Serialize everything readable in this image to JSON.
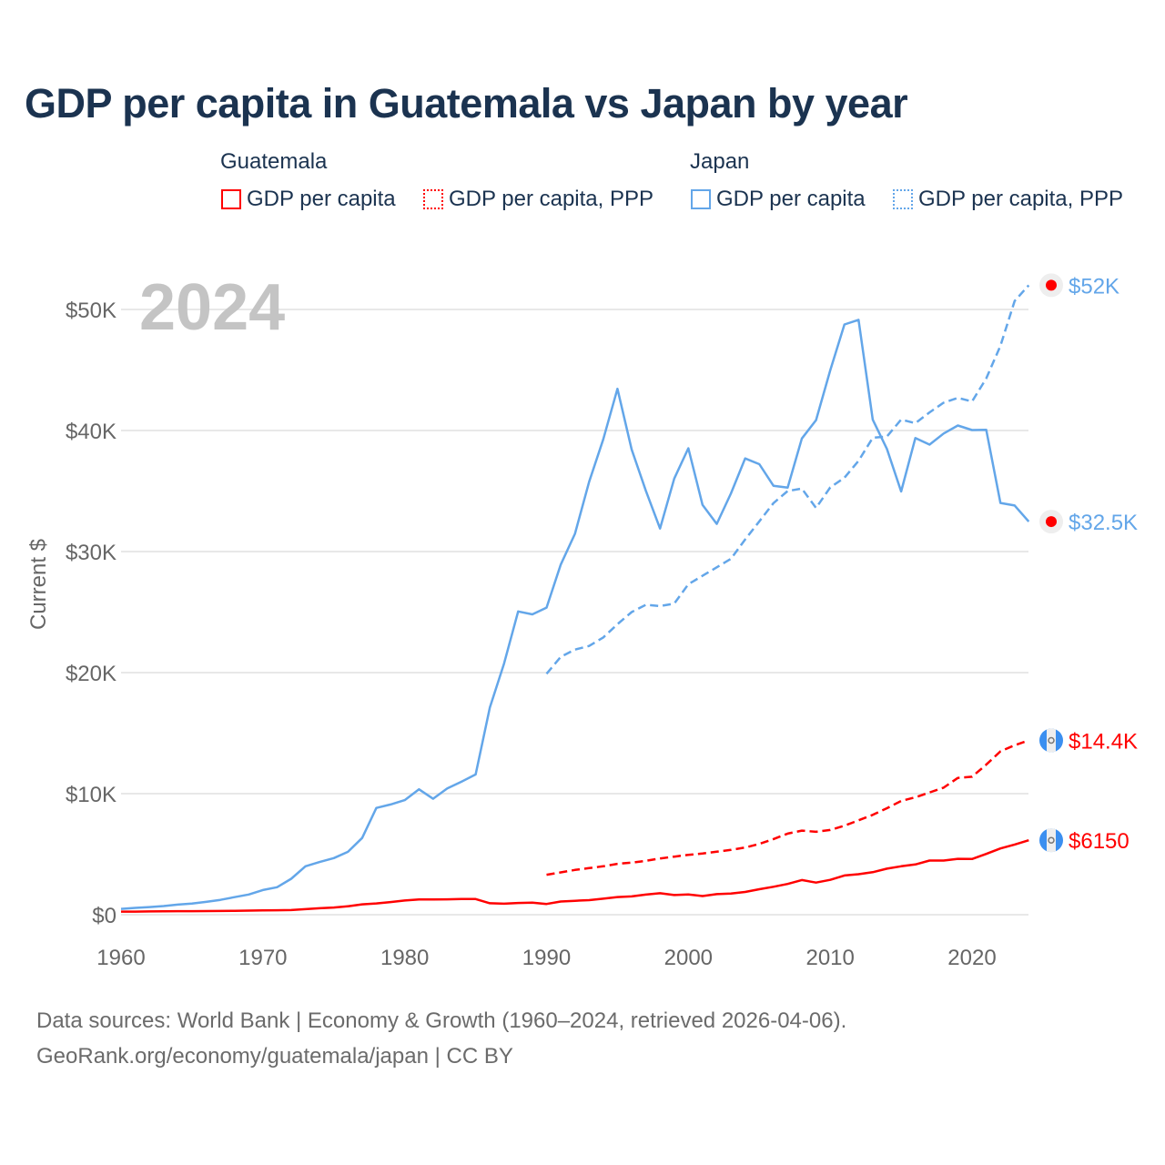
{
  "chart_data": {
    "type": "line",
    "title": "GDP per capita in Guatemala vs Japan by year",
    "ylabel": "Current $",
    "xlabel": "",
    "year_label": "2024",
    "xlim": [
      1960,
      2024
    ],
    "ylim": [
      0,
      52000
    ],
    "x_ticks": [
      1960,
      1970,
      1980,
      1990,
      2000,
      2010,
      2020
    ],
    "x_tick_labels": [
      "1960",
      "1970",
      "1980",
      "1990",
      "2000",
      "2010",
      "2020"
    ],
    "y_ticks": [
      0,
      10000,
      20000,
      30000,
      40000,
      50000
    ],
    "y_tick_labels": [
      "$0",
      "$10K",
      "$20K",
      "$30K",
      "$40K",
      "$50K"
    ],
    "grid": true,
    "legend_groups": [
      {
        "country": "Guatemala",
        "color": "#ff0000",
        "items": [
          "GDP per capita",
          "GDP per capita, PPP"
        ]
      },
      {
        "country": "Japan",
        "color": "#63a6e9",
        "items": [
          "GDP per capita",
          "GDP per capita, PPP"
        ]
      }
    ],
    "series": [
      {
        "name": "Japan GDP per capita",
        "country": "Japan",
        "color": "#63a6e9",
        "dashed": false,
        "start_year": 1960,
        "end_label": "$32.5K",
        "values": [
          479,
          564,
          634,
          718,
          835,
          920,
          1059,
          1229,
          1451,
          1669,
          2037,
          2272,
          2967,
          3997,
          4354,
          4674,
          5197,
          6335,
          8821,
          9105,
          9463,
          10361,
          9578,
          10425,
          10984,
          11585,
          17113,
          20745,
          25052,
          24813,
          25371,
          28925,
          31465,
          35766,
          39269,
          43440,
          38437,
          35022,
          31903,
          36027,
          38532,
          33846,
          32289,
          34808,
          37688,
          37218,
          35434,
          35275,
          39339,
          40855,
          44968,
          48760,
          49145,
          40898,
          38475,
          34961,
          39375,
          38834,
          39751,
          40416,
          40040,
          40059,
          34017,
          33806,
          32476
        ]
      },
      {
        "name": "Japan GDP per capita, PPP",
        "country": "Japan",
        "color": "#63a6e9",
        "dashed": true,
        "start_year": 1990,
        "end_label": "$52K",
        "values": [
          19900,
          21300,
          21900,
          22200,
          22900,
          24000,
          25000,
          25600,
          25500,
          25700,
          27300,
          28000,
          28700,
          29400,
          31000,
          32500,
          34000,
          35000,
          35200,
          33600,
          35300,
          36100,
          37500,
          39400,
          39500,
          40900,
          40600,
          41500,
          42300,
          42700,
          42400,
          44300,
          47000,
          50700,
          52000
        ]
      },
      {
        "name": "Guatemala GDP per capita",
        "country": "Guatemala",
        "color": "#ff0000",
        "dashed": false,
        "start_year": 1960,
        "end_label": "$6150",
        "values": [
          252,
          257,
          267,
          289,
          292,
          296,
          302,
          306,
          327,
          339,
          359,
          366,
          380,
          455,
          536,
          597,
          701,
          855,
          934,
          1046,
          1174,
          1252,
          1252,
          1271,
          1298,
          1291,
          946,
          911,
          970,
          1002,
          889,
          1087,
          1151,
          1205,
          1327,
          1455,
          1510,
          1662,
          1776,
          1624,
          1668,
          1544,
          1702,
          1747,
          1880,
          2105,
          2311,
          2539,
          2864,
          2653,
          2883,
          3240,
          3348,
          3512,
          3808,
          4003,
          4148,
          4470,
          4473,
          4620,
          4603,
          5026,
          5473,
          5797,
          6150
        ]
      },
      {
        "name": "Guatemala GDP per capita, PPP",
        "country": "Guatemala",
        "color": "#ff0000",
        "dashed": true,
        "start_year": 1990,
        "end_label": "$14.4K",
        "values": [
          3300,
          3500,
          3700,
          3850,
          4000,
          4200,
          4300,
          4450,
          4650,
          4800,
          4950,
          5050,
          5200,
          5350,
          5550,
          5850,
          6250,
          6700,
          6950,
          6850,
          7000,
          7350,
          7800,
          8250,
          8800,
          9400,
          9700,
          10100,
          10500,
          11300,
          11400,
          12400,
          13500,
          14000,
          14400
        ]
      }
    ]
  },
  "footer": {
    "line1": "Data sources: World Bank | Economy & Growth (1960–2024, retrieved 2026-04-06).",
    "line2": "GeoRank.org/economy/guatemala/japan | CC BY"
  }
}
